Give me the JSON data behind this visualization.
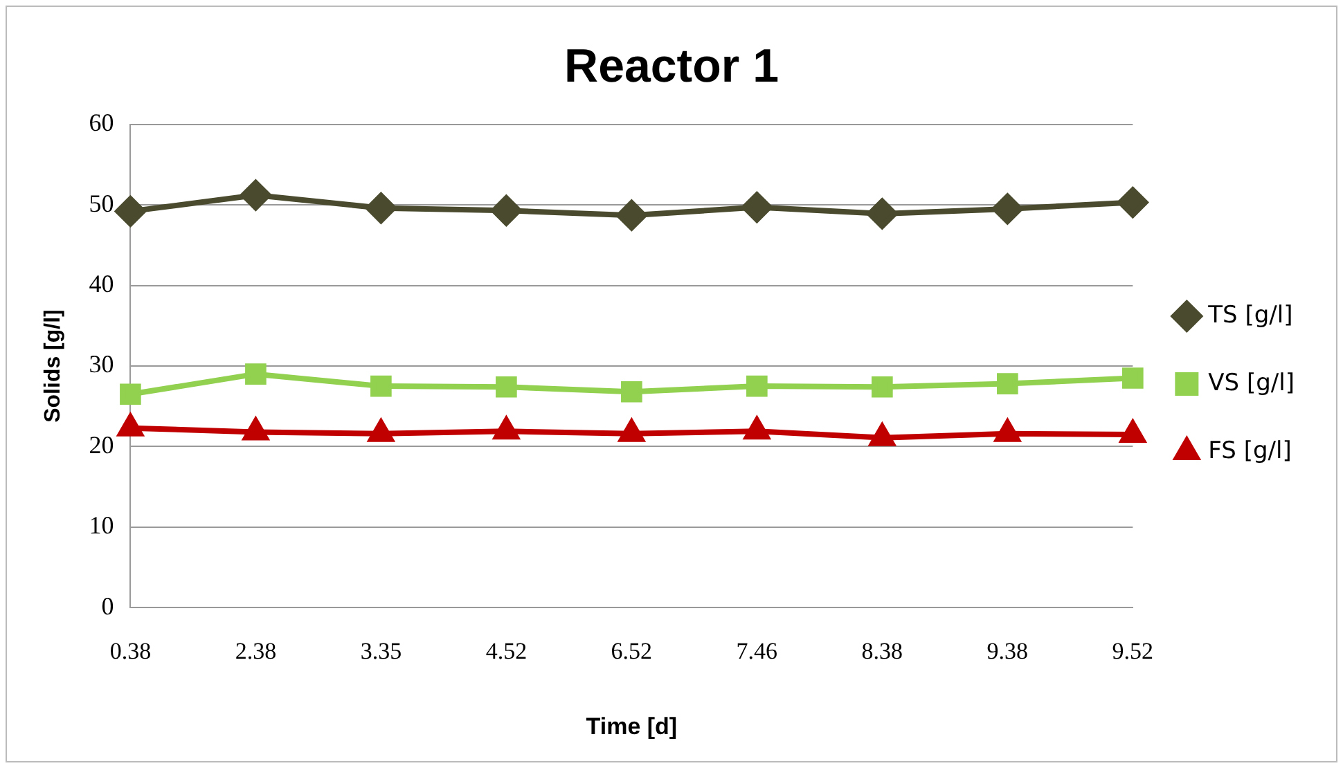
{
  "chart_data": {
    "type": "line",
    "title": "Reactor 1",
    "xlabel": "Time [d]",
    "ylabel": "Solids [g/l]",
    "categories": [
      "0.38",
      "2.38",
      "3.35",
      "4.52",
      "6.52",
      "7.46",
      "8.38",
      "9.38",
      "9.52"
    ],
    "series": [
      {
        "name": "TS [g/l]",
        "color": "#4a4a2e",
        "marker": "diamond",
        "values": [
          49.2,
          51.2,
          49.6,
          49.3,
          48.7,
          49.7,
          48.9,
          49.5,
          50.3
        ]
      },
      {
        "name": "VS [g/l]",
        "color": "#92d050",
        "marker": "square",
        "values": [
          26.5,
          29.0,
          27.5,
          27.4,
          26.8,
          27.5,
          27.4,
          27.8,
          28.5
        ]
      },
      {
        "name": "FS [g/l]",
        "color": "#c00000",
        "marker": "triangle",
        "values": [
          22.3,
          21.8,
          21.6,
          21.9,
          21.6,
          21.9,
          21.1,
          21.6,
          21.5
        ]
      }
    ],
    "ylim": [
      0,
      60
    ],
    "yticks": [
      0,
      10,
      20,
      30,
      40,
      50,
      60
    ],
    "grid": "y",
    "legend": "right",
    "line_style": "solid"
  }
}
